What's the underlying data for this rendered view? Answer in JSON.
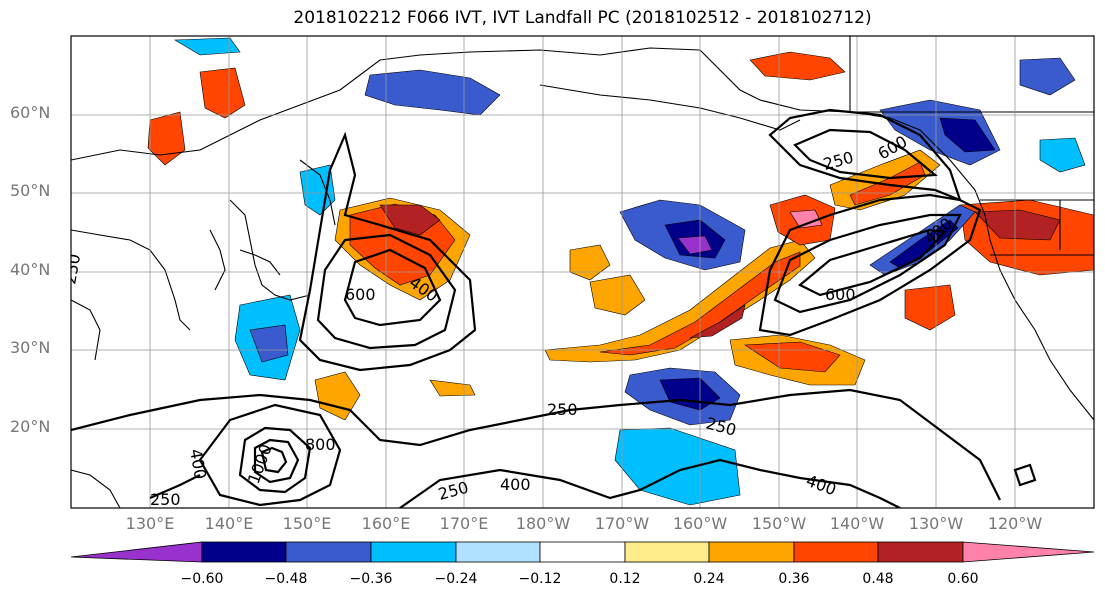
{
  "title": "2018102212 F066 IVT, IVT Landfall PC (2018102512 - 2018102712)",
  "latitude_labels": [
    "60°N",
    "50°N",
    "40°N",
    "30°N",
    "20°N"
  ],
  "longitude_labels": [
    "130°E",
    "140°E",
    "150°E",
    "160°E",
    "170°E",
    "180°W",
    "170°W",
    "160°W",
    "150°W",
    "140°W",
    "130°W",
    "120°W"
  ],
  "contour_labels": [
    "250",
    "400",
    "600",
    "800",
    "1000",
    "250",
    "400",
    "600",
    "250",
    "400",
    "600",
    "250",
    "400",
    "250",
    "400",
    "250"
  ],
  "colorbar": {
    "ticks": [
      "−0.60",
      "−0.48",
      "−0.36",
      "−0.24",
      "−0.12",
      "0.12",
      "0.24",
      "0.36",
      "0.48",
      "0.60"
    ],
    "colors": [
      "#9932cc",
      "#00008b",
      "#3a5bcd",
      "#00bfff",
      "#b0e2ff",
      "#ffffff",
      "#ffec8b",
      "#ffa500",
      "#ff4500",
      "#b22222",
      "#ff82ab"
    ]
  }
}
